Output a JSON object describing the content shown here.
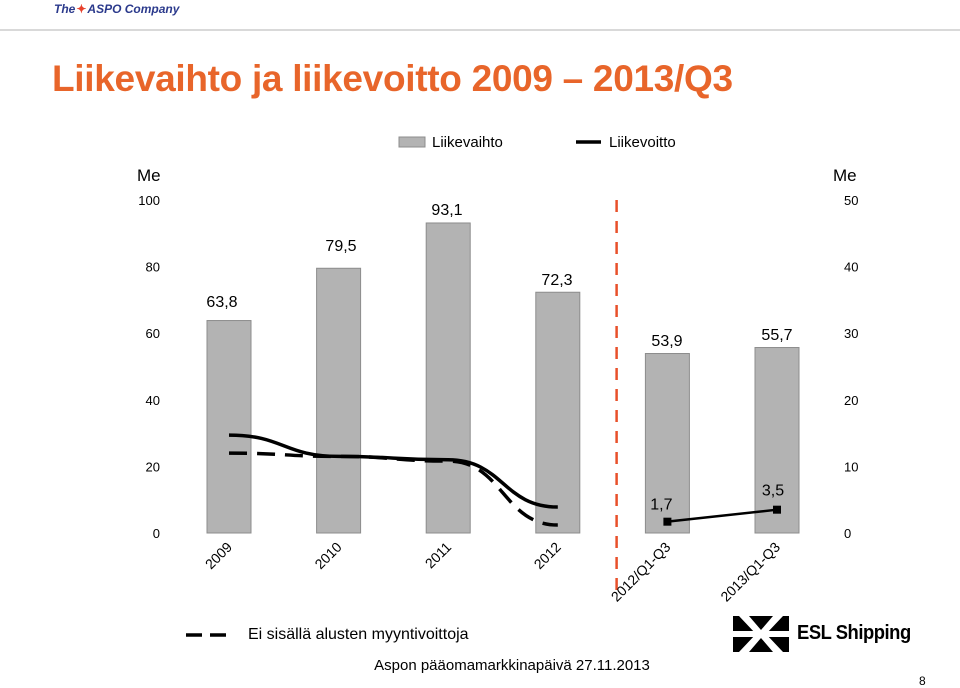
{
  "logo": {
    "the": "The",
    "brand": "ASPO Company"
  },
  "page_title": "Liikevaihto ja liikevoitto 2009 – 2013/Q3",
  "footer": {
    "note": "Ei sisällä alusten myyntivoittoja",
    "event": "Aspon pääomamarkkinapäivä 27.11.2013",
    "page_number": "8",
    "brand": "ESL Shipping"
  },
  "colors": {
    "title": "#e8652a",
    "bar_fill": "#b3b3b3",
    "bar_stroke": "#8c8c8c",
    "line": "#000000",
    "divider": "#e8502a"
  },
  "chart_data": {
    "type": "bar",
    "categories": [
      "2009",
      "2010",
      "2011",
      "2012",
      "2012/Q1-Q3",
      "2013/Q1-Q3"
    ],
    "left_axis": {
      "unit": "Me",
      "ylim": [
        0,
        100
      ],
      "ticks": [
        0,
        20,
        40,
        60,
        80,
        100
      ]
    },
    "right_axis": {
      "unit": "Me",
      "ylim": [
        0,
        50
      ],
      "ticks": [
        0,
        10,
        20,
        30,
        40,
        50
      ]
    },
    "legend": {
      "placement": "top",
      "bar_label": "Liikevaihto",
      "line_label": "Liikevoitto"
    },
    "series": [
      {
        "name": "Liikevaihto",
        "kind": "bar",
        "axis": "left",
        "values": [
          63.8,
          79.5,
          93.1,
          72.3,
          53.9,
          55.7
        ],
        "labels": [
          "63,8",
          "79,5",
          "93,1",
          "72,3",
          "53,9",
          "55,7"
        ]
      },
      {
        "name": "Liikevoitto",
        "kind": "line",
        "axis": "right",
        "style": "solid",
        "x": [
          "2009",
          "2010",
          "2011",
          "2012"
        ],
        "values": [
          14.7,
          11.5,
          11.0,
          3.9
        ]
      },
      {
        "name": "Ei sisällä alusten myyntivoittoja",
        "kind": "line",
        "axis": "right",
        "style": "dashed",
        "x": [
          "2009",
          "2010",
          "2011",
          "2012"
        ],
        "values": [
          12.0,
          11.5,
          10.8,
          1.2
        ]
      },
      {
        "name": "Liikevoitto",
        "kind": "line",
        "axis": "right",
        "style": "solid",
        "marker": "square",
        "x": [
          "2012/Q1-Q3",
          "2013/Q1-Q3"
        ],
        "values": [
          1.7,
          3.5
        ],
        "labels": [
          "1,7",
          "3,5"
        ]
      }
    ],
    "divider_between": [
      "2012",
      "2012/Q1-Q3"
    ],
    "grid": false
  }
}
